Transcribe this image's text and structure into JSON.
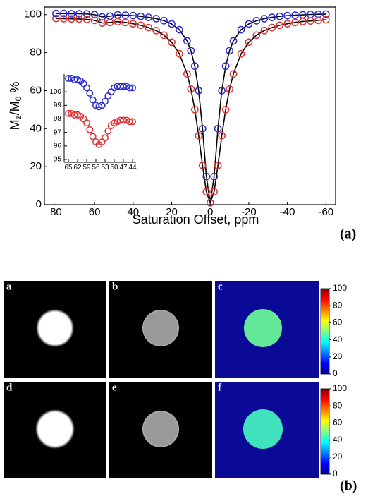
{
  "chart_data": [
    {
      "type": "scatter",
      "panel_label": "(a)",
      "x_label": "Saturation Offset, ppm",
      "y_label_parts": [
        "M",
        "z",
        "/M",
        "0",
        " %"
      ],
      "xlim": [
        86,
        -65
      ],
      "ylim": [
        0,
        104
      ],
      "xticks": [
        80,
        60,
        40,
        20,
        0,
        -20,
        -40,
        -60
      ],
      "yticks": [
        0,
        20,
        40,
        60,
        80,
        100
      ],
      "x": [
        80,
        76,
        72,
        68,
        64,
        60,
        56,
        52,
        48,
        44,
        40,
        36,
        32,
        28,
        24,
        20,
        16,
        12,
        10,
        8,
        6,
        4,
        2,
        0,
        -2,
        -4,
        -6,
        -8,
        -10,
        -12,
        -16,
        -20,
        -24,
        -28,
        -32,
        -36,
        -40,
        -44,
        -48,
        -52,
        -56,
        -60
      ],
      "series": [
        {
          "color": "#2a2ad8",
          "line_color": "#000000",
          "values": [
            100.6,
            100.6,
            100.5,
            100.5,
            100.4,
            100.0,
            98.8,
            99.2,
            99.9,
            99.7,
            99.5,
            99.1,
            98.6,
            97.9,
            96.8,
            95.1,
            92.1,
            86.2,
            81.0,
            72.9,
            60.0,
            40.0,
            14.8,
            1,
            14.8,
            40.0,
            60.0,
            72.9,
            81.0,
            86.2,
            92.1,
            95.1,
            96.8,
            97.9,
            98.6,
            99.1,
            99.5,
            99.7,
            99.9,
            100.1,
            100.2,
            100.3
          ]
        },
        {
          "color": "#e03030",
          "line_color": "#000000",
          "values": [
            98.0,
            97.9,
            97.8,
            97.7,
            97.5,
            97.0,
            95.6,
            95.9,
            96.3,
            95.9,
            95.2,
            94.4,
            93.2,
            91.6,
            89.2,
            85.5,
            79.4,
            68.8,
            60.8,
            50.0,
            36.3,
            20.6,
            6.8,
            1.0,
            6.8,
            20.6,
            36.3,
            50.0,
            60.8,
            68.8,
            79.4,
            85.5,
            89.2,
            91.6,
            93.2,
            94.4,
            95.2,
            95.9,
            96.4,
            96.7,
            97.0,
            97.3
          ]
        }
      ]
    },
    {
      "type": "scatter",
      "xlim": [
        65,
        44
      ],
      "ylim": [
        95,
        101
      ],
      "xticks": [
        65,
        62,
        59,
        56,
        53,
        50,
        47,
        44
      ],
      "yticks": [
        95,
        96,
        97,
        98,
        99,
        100
      ],
      "x": [
        65,
        64,
        63,
        62,
        61,
        60,
        59,
        58,
        57,
        56,
        55,
        54,
        53,
        52,
        51,
        50,
        49,
        48,
        47,
        46,
        45,
        44
      ],
      "series": [
        {
          "color": "#2a2ad8",
          "values": [
            101.0,
            101.0,
            100.9,
            100.9,
            100.8,
            100.6,
            100.3,
            99.9,
            99.4,
            99.0,
            98.9,
            99.0,
            99.3,
            99.7,
            100.0,
            100.3,
            100.4,
            100.4,
            100.4,
            100.4,
            100.3,
            100.3
          ]
        },
        {
          "color": "#e03030",
          "values": [
            98.4,
            98.4,
            98.3,
            98.3,
            98.2,
            98.0,
            97.7,
            97.2,
            96.7,
            96.3,
            96.1,
            96.3,
            96.6,
            97.1,
            97.5,
            97.7,
            97.8,
            97.9,
            97.9,
            97.9,
            97.8,
            97.8
          ]
        }
      ]
    }
  ],
  "image_panels": {
    "label": "(b)",
    "labels": [
      "a",
      "b",
      "c",
      "d",
      "e",
      "f"
    ],
    "colorbars": [
      {
        "lim": [
          0,
          100
        ],
        "ticks": [
          0,
          20,
          40,
          60,
          80,
          100
        ]
      },
      {
        "lim": [
          0,
          100
        ],
        "ticks": [
          0,
          20,
          40,
          60,
          80,
          100
        ]
      }
    ]
  }
}
